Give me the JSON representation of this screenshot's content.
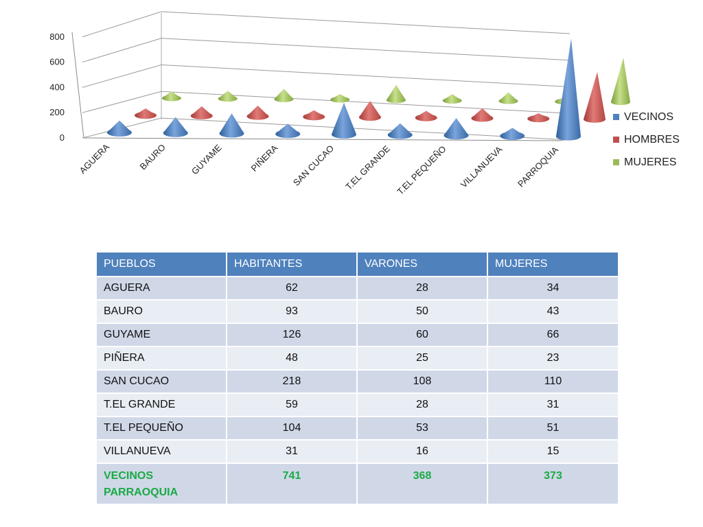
{
  "chart_data": {
    "type": "bar",
    "style": "3d-cone",
    "categories": [
      "AGUERA",
      "BAURO",
      "GUYAME",
      "PIÑERA",
      "SAN CUCAO",
      "T.EL GRANDE",
      "T.EL PEQUEÑO",
      "VILLANUEVA",
      "PARROQUIA"
    ],
    "series": [
      {
        "name": "VECINOS",
        "color": "#4f81bd",
        "values": [
          62,
          93,
          126,
          48,
          218,
          59,
          104,
          31,
          741
        ]
      },
      {
        "name": "HOMBRES",
        "color": "#c0504d",
        "values": [
          28,
          50,
          60,
          25,
          108,
          28,
          53,
          16,
          368
        ]
      },
      {
        "name": "MUJERES",
        "color": "#9bbb59",
        "values": [
          34,
          43,
          66,
          23,
          110,
          31,
          51,
          15,
          373
        ]
      }
    ],
    "yticks": [
      "0",
      "200",
      "400",
      "600",
      "800"
    ],
    "ylim": [
      0,
      800
    ],
    "grid": true,
    "legend_position": "right"
  },
  "table": {
    "headers": [
      "PUEBLOS",
      "HABITANTES",
      "VARONES",
      "MUJERES"
    ],
    "rows": [
      [
        "AGUERA",
        "62",
        "28",
        "34"
      ],
      [
        "BAURO",
        "93",
        "50",
        "43"
      ],
      [
        "GUYAME",
        "126",
        "60",
        "66"
      ],
      [
        "PIÑERA",
        "48",
        "25",
        "23"
      ],
      [
        "SAN CUCAO",
        "218",
        "108",
        "110"
      ],
      [
        "T.EL GRANDE",
        "59",
        "28",
        "31"
      ],
      [
        "T.EL PEQUEÑO",
        "104",
        "53",
        "51"
      ],
      [
        "VILLANUEVA",
        "31",
        "16",
        "15"
      ]
    ],
    "total": {
      "label_line1": "VECINOS",
      "label_line2": "PARRAOQUIA",
      "habitantes": "741",
      "varones": "368",
      "mujeres": "373"
    },
    "total_color": "#1aaa44"
  }
}
